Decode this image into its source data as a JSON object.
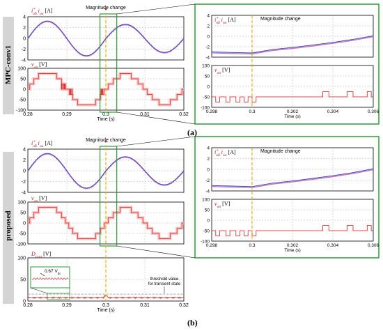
{
  "figure": {
    "label_a": "(a)",
    "label_b": "(b)",
    "method_top": "MPC-conv1",
    "method_bottom": "proposed",
    "annotation_change": "Magnitude change",
    "annotation_ripple": "0.67 V",
    "annotation_ripple_sub": "dc",
    "annotation_threshold_line1": "threshold value",
    "annotation_threshold_line2": "for transient state"
  },
  "colors": {
    "reference": "#3a3ad0",
    "measured": "#c07aa8",
    "voltage": "#d02020",
    "voltage_glow": "#f7c2c2",
    "dtran": "#c83c3c",
    "zoom_box": "#2e9a3a",
    "change_line": "#e8b000",
    "label_red": "#b02020"
  },
  "chart_data": [
    {
      "id": "a-current",
      "type": "line",
      "ylabel": "i*_oa, i_oa [A]",
      "xlim": [
        0.28,
        0.32
      ],
      "ylim": [
        -4,
        4
      ],
      "yticks": [
        4,
        2,
        0,
        -2,
        -4
      ],
      "xticks": [],
      "grid": true,
      "series": [
        {
          "role": "reference",
          "description": "sinusoid, amplitude 3.2 A, 50 Hz; amplitude steps to 2.6 A at t = 0.3 s"
        },
        {
          "role": "measured",
          "description": "tracks reference closely"
        }
      ],
      "x": [
        0.28,
        0.2825,
        0.285,
        0.2875,
        0.29,
        0.2925,
        0.295,
        0.2975,
        0.3,
        0.3025,
        0.305,
        0.3075,
        0.31,
        0.3125,
        0.315,
        0.3175,
        0.32
      ],
      "y": [
        0.0,
        1.22,
        2.26,
        2.96,
        3.2,
        2.96,
        2.26,
        1.22,
        0.0,
        0.99,
        1.84,
        2.4,
        2.6,
        2.4,
        1.84,
        0.99,
        0.0
      ]
    },
    {
      "id": "a-voltage",
      "type": "line",
      "ylabel": "v_an [V]",
      "xlabel": "Time (s)",
      "xlim": [
        0.28,
        0.32
      ],
      "ylim": [
        -100,
        100
      ],
      "yticks": [
        100,
        50,
        0,
        -50,
        -100
      ],
      "xticks": [
        "0.28",
        "0.29",
        "0.3",
        "0.31",
        "0.32"
      ],
      "grid": true,
      "levels": [
        -100,
        -75,
        -50,
        -25,
        0,
        25,
        50,
        75,
        100
      ]
    },
    {
      "id": "a-zoom-current",
      "type": "line",
      "ylabel": "i*_oa, i_oa [A]",
      "xlim": [
        0.298,
        0.306
      ],
      "ylim": [
        -4,
        4
      ],
      "yticks": [
        4,
        2,
        0,
        -2,
        -4
      ],
      "grid": true,
      "x": [
        0.298,
        0.299,
        0.3,
        0.301,
        0.302,
        0.303,
        0.304,
        0.305,
        0.306
      ],
      "y": [
        -3.0,
        -3.1,
        -3.2,
        -2.55,
        -2.15,
        -1.68,
        -1.18,
        -0.6,
        0.1
      ]
    },
    {
      "id": "a-zoom-voltage",
      "type": "line",
      "ylabel": "v_an [V]",
      "xlabel": "Time (s)",
      "xlim": [
        0.298,
        0.306
      ],
      "ylim": [
        -100,
        100
      ],
      "yticks": [
        100,
        50,
        0,
        -50,
        -100
      ],
      "xticks": [
        "0.298",
        "0.3",
        "0.302",
        "0.304",
        "0.306"
      ],
      "grid": true
    },
    {
      "id": "b-current",
      "type": "line",
      "ylabel": "i*_oa, i_oa [A]",
      "xlim": [
        0.28,
        0.32
      ],
      "ylim": [
        -4,
        4
      ],
      "yticks": [
        4,
        2,
        0,
        -2,
        -4
      ],
      "grid": true,
      "x": [
        0.28,
        0.2825,
        0.285,
        0.2875,
        0.29,
        0.2925,
        0.295,
        0.2975,
        0.3,
        0.3025,
        0.305,
        0.3075,
        0.31,
        0.3125,
        0.315,
        0.3175,
        0.32
      ],
      "y": [
        0.0,
        1.22,
        2.26,
        2.96,
        3.2,
        2.96,
        2.26,
        1.22,
        0.0,
        0.99,
        1.84,
        2.4,
        2.6,
        2.4,
        1.84,
        0.99,
        0.0
      ]
    },
    {
      "id": "b-voltage",
      "type": "line",
      "ylabel": "v_an [V]",
      "xlim": [
        0.28,
        0.32
      ],
      "ylim": [
        -100,
        100
      ],
      "yticks": [
        100,
        50,
        0,
        -50,
        -100
      ],
      "grid": true
    },
    {
      "id": "b-dtran",
      "type": "line",
      "ylabel": "D_tran [V]",
      "xlabel": "Time (s)",
      "xlim": [
        0.28,
        0.32
      ],
      "ylim": [
        0,
        100
      ],
      "yticks": [
        100,
        50,
        0
      ],
      "xticks": [
        "0.28",
        "0.29",
        "0.3",
        "0.31",
        "0.32"
      ],
      "grid": true,
      "description": "small noisy signal about 8 V; threshold line near 16 V"
    },
    {
      "id": "b-zoom-current",
      "type": "line",
      "ylabel": "i*_oa, i_oa [A]",
      "xlim": [
        0.298,
        0.306
      ],
      "ylim": [
        -4,
        4
      ],
      "yticks": [
        4,
        2,
        0,
        -2,
        -4
      ],
      "grid": true,
      "x": [
        0.298,
        0.299,
        0.3,
        0.301,
        0.302,
        0.303,
        0.304,
        0.305,
        0.306
      ],
      "y": [
        -3.0,
        -3.1,
        -3.2,
        -2.55,
        -2.15,
        -1.68,
        -1.18,
        -0.6,
        0.1
      ]
    },
    {
      "id": "b-zoom-voltage",
      "type": "line",
      "ylabel": "v_an [V]",
      "xlabel": "Time (s)",
      "xlim": [
        0.298,
        0.306
      ],
      "ylim": [
        -100,
        100
      ],
      "yticks": [
        100,
        50,
        0,
        -50,
        -100
      ],
      "xticks": [
        "0.298",
        "0.3",
        "0.302",
        "0.304",
        "0.306"
      ],
      "grid": true
    }
  ]
}
